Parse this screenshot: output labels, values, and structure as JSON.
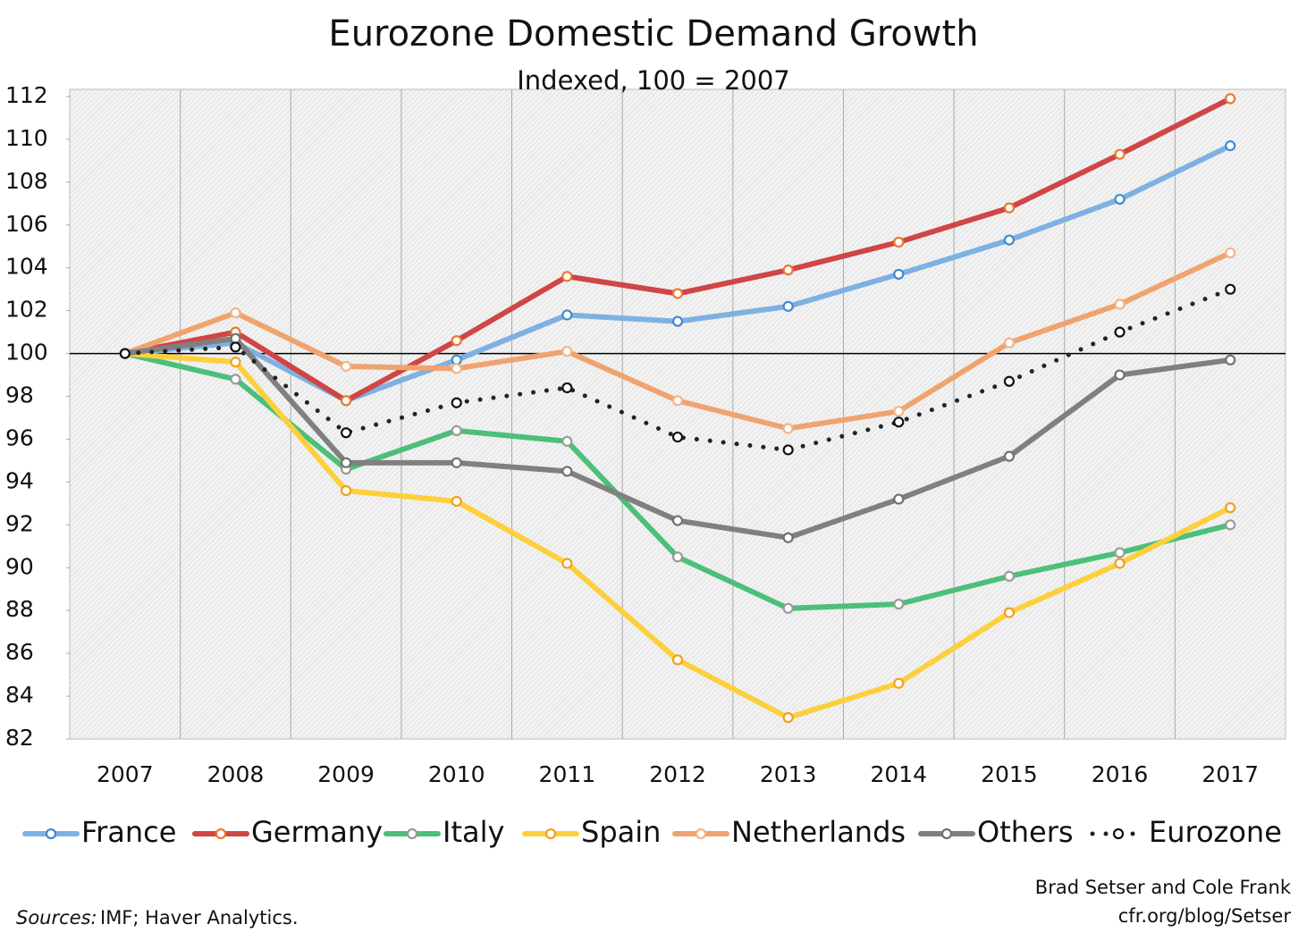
{
  "chart_data": {
    "type": "line",
    "title": "Eurozone Domestic Demand Growth",
    "subtitle": "Indexed, 100 = 2007",
    "categories": [
      "2007",
      "2008",
      "2009",
      "2010",
      "2011",
      "2012",
      "2013",
      "2014",
      "2015",
      "2016",
      "2017"
    ],
    "series": [
      {
        "name": "France",
        "color": "#7eb1e2",
        "marker_color": "#3f8ad0",
        "values": [
          100,
          100.5,
          97.8,
          99.7,
          101.8,
          101.5,
          102.2,
          103.7,
          105.3,
          107.2,
          109.7
        ]
      },
      {
        "name": "Germany",
        "color": "#d04545",
        "marker_color": "#e77a2e",
        "values": [
          100,
          101,
          97.8,
          100.6,
          103.6,
          102.8,
          103.9,
          105.2,
          106.8,
          109.3,
          111.9
        ]
      },
      {
        "name": "Italy",
        "color": "#4cbf7a",
        "marker_color": "#9a9a9a",
        "values": [
          100,
          98.8,
          94.6,
          96.4,
          95.9,
          90.5,
          88.1,
          88.3,
          89.6,
          90.7,
          92.0
        ]
      },
      {
        "name": "Spain",
        "color": "#fcd03c",
        "marker_color": "#f0a020",
        "values": [
          100,
          99.6,
          93.6,
          93.1,
          90.2,
          85.7,
          83.0,
          84.6,
          87.9,
          90.2,
          92.8
        ]
      },
      {
        "name": "Netherlands",
        "color": "#efa46f",
        "marker_color": "#f2b48a",
        "values": [
          100,
          101.9,
          99.4,
          99.3,
          100.1,
          97.8,
          96.5,
          97.3,
          100.5,
          102.3,
          104.7
        ]
      },
      {
        "name": "Others",
        "color": "#808080",
        "marker_color": "#707070",
        "values": [
          100,
          100.7,
          94.9,
          94.9,
          94.5,
          92.2,
          91.4,
          93.2,
          95.2,
          99.0,
          99.7
        ]
      },
      {
        "name": "Eurozone",
        "color": "#222222",
        "marker_color": "#111111",
        "style": "dotted",
        "values": [
          100,
          100.3,
          96.3,
          97.7,
          98.4,
          96.1,
          95.5,
          96.8,
          98.7,
          101.0,
          103.0
        ]
      }
    ],
    "ylim": [
      82,
      112
    ],
    "yticks": [
      82,
      84,
      86,
      88,
      90,
      92,
      94,
      96,
      98,
      100,
      102,
      104,
      106,
      108,
      110,
      112
    ],
    "reference_line": 100,
    "legend": "bottom",
    "source_label": "Sources:",
    "source": "IMF; Haver Analytics.",
    "credit": [
      "Brad Setser and Cole Frank",
      "cfr.org/blog/Setser"
    ]
  }
}
